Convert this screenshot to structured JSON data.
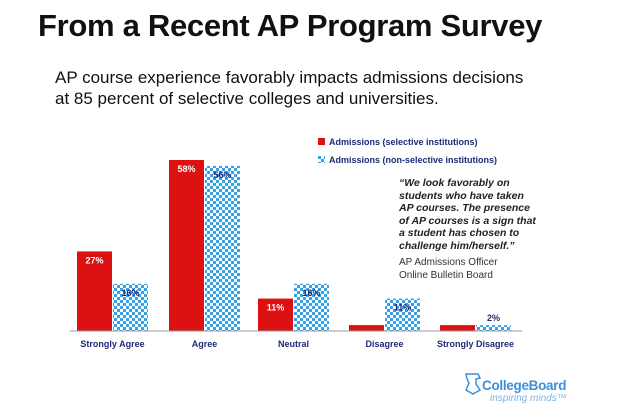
{
  "page": {
    "title": "From a Recent AP Program Survey",
    "subtitle": "AP course experience favorably impacts admissions decisions at 85 percent of selective colleges and universities."
  },
  "quote": {
    "text": "“We look favorably on students who have taken AP courses. The presence of AP courses is a sign that a student has chosen to challenge him/herself.”",
    "attribution_line1": "AP Admissions Officer",
    "attribution_line2": "Online Bulletin Board"
  },
  "logo": {
    "name": "CollegeBoard",
    "tagline": "inspiring minds™",
    "icon": "acorn-icon"
  },
  "chart_data": {
    "type": "bar",
    "categories": [
      "Strongly Agree",
      "Agree",
      "Neutral",
      "Disagree",
      "Strongly Disagree"
    ],
    "series": [
      {
        "name": "Admissions (selective institutions)",
        "values": [
          27,
          58,
          11,
          2,
          2
        ],
        "labels": [
          "27%",
          "58%",
          "11%",
          "",
          ""
        ],
        "color": "#dd1111",
        "pattern": "solid"
      },
      {
        "name": "Admissions (non-selective institutions)",
        "values": [
          16,
          56,
          16,
          11,
          2
        ],
        "labels": [
          "16%",
          "56%",
          "16%",
          "11%",
          "2%"
        ],
        "color": "#3aa0e0",
        "pattern": "checker"
      }
    ],
    "ylim": [
      0,
      58
    ],
    "legend_position": "top-right",
    "grid": false
  }
}
